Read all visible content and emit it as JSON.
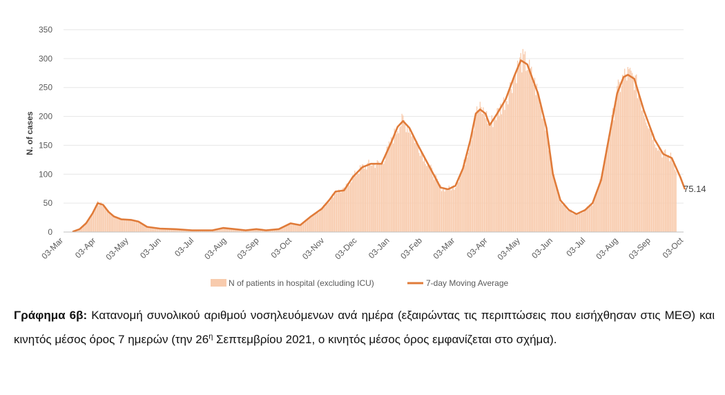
{
  "chart_data": {
    "type": "bar+line",
    "ylabel": "N. of cases",
    "ylim": [
      0,
      350
    ],
    "yticks": [
      0,
      50,
      100,
      150,
      200,
      250,
      300,
      350
    ],
    "x_ticks": [
      "03-Mar",
      "03-Apr",
      "03-May",
      "03-Jun",
      "03-Jul",
      "03-Aug",
      "03-Sep",
      "03-Oct",
      "03-Nov",
      "03-Dec",
      "03-Jan",
      "03-Feb",
      "03-Mar",
      "03-Apr",
      "03-May",
      "03-Jun",
      "03-Jul",
      "03-Aug",
      "03-Sep",
      "03-Oct"
    ],
    "x_start": "2020-03-03",
    "x_end": "2021-10-03",
    "series": [
      {
        "name": "N of patients in hospital (excluding ICU)",
        "type": "bar",
        "color": "#f8cbad"
      },
      {
        "name": "7-day Moving Average",
        "type": "line",
        "color": "#e07b39",
        "points": [
          [
            "2020-03-12",
            1
          ],
          [
            "2020-03-18",
            5
          ],
          [
            "2020-03-24",
            15
          ],
          [
            "2020-03-30",
            32
          ],
          [
            "2020-04-04",
            50
          ],
          [
            "2020-04-09",
            47
          ],
          [
            "2020-04-14",
            35
          ],
          [
            "2020-04-19",
            27
          ],
          [
            "2020-04-26",
            22
          ],
          [
            "2020-05-05",
            21
          ],
          [
            "2020-05-12",
            18
          ],
          [
            "2020-05-20",
            9
          ],
          [
            "2020-06-01",
            6
          ],
          [
            "2020-06-15",
            5
          ],
          [
            "2020-07-01",
            3
          ],
          [
            "2020-07-20",
            3
          ],
          [
            "2020-07-30",
            7
          ],
          [
            "2020-08-10",
            5
          ],
          [
            "2020-08-20",
            3
          ],
          [
            "2020-08-30",
            5
          ],
          [
            "2020-09-08",
            3
          ],
          [
            "2020-09-20",
            5
          ],
          [
            "2020-10-01",
            15
          ],
          [
            "2020-10-10",
            12
          ],
          [
            "2020-10-20",
            27
          ],
          [
            "2020-10-30",
            40
          ],
          [
            "2020-11-06",
            55
          ],
          [
            "2020-11-12",
            70
          ],
          [
            "2020-11-20",
            72
          ],
          [
            "2020-11-28",
            95
          ],
          [
            "2020-12-07",
            112
          ],
          [
            "2020-12-15",
            118
          ],
          [
            "2020-12-25",
            118
          ],
          [
            "2021-01-03",
            155
          ],
          [
            "2021-01-09",
            182
          ],
          [
            "2021-01-14",
            192
          ],
          [
            "2021-01-20",
            180
          ],
          [
            "2021-01-28",
            150
          ],
          [
            "2021-02-08",
            112
          ],
          [
            "2021-02-18",
            77
          ],
          [
            "2021-02-25",
            74
          ],
          [
            "2021-03-04",
            80
          ],
          [
            "2021-03-11",
            110
          ],
          [
            "2021-03-18",
            160
          ],
          [
            "2021-03-23",
            205
          ],
          [
            "2021-03-27",
            212
          ],
          [
            "2021-04-01",
            205
          ],
          [
            "2021-04-05",
            185
          ],
          [
            "2021-04-12",
            205
          ],
          [
            "2021-04-20",
            230
          ],
          [
            "2021-04-28",
            270
          ],
          [
            "2021-05-04",
            297
          ],
          [
            "2021-05-10",
            290
          ],
          [
            "2021-05-20",
            240
          ],
          [
            "2021-05-28",
            180
          ],
          [
            "2021-06-03",
            100
          ],
          [
            "2021-06-10",
            55
          ],
          [
            "2021-06-18",
            38
          ],
          [
            "2021-06-25",
            31
          ],
          [
            "2021-07-03",
            38
          ],
          [
            "2021-07-10",
            50
          ],
          [
            "2021-07-18",
            90
          ],
          [
            "2021-07-26",
            170
          ],
          [
            "2021-08-02",
            240
          ],
          [
            "2021-08-08",
            268
          ],
          [
            "2021-08-12",
            272
          ],
          [
            "2021-08-18",
            265
          ],
          [
            "2021-08-27",
            210
          ],
          [
            "2021-09-06",
            160
          ],
          [
            "2021-09-14",
            135
          ],
          [
            "2021-09-22",
            128
          ],
          [
            "2021-09-30",
            95
          ],
          [
            "2021-10-04",
            75
          ]
        ]
      }
    ],
    "end_label": "75.14",
    "legend_position": "bottom",
    "grid": true
  },
  "caption": {
    "label": "Γράφημα 6β:",
    "text_1": " Κατανομή συνολικού αριθμού νοσηλευόμενων ανά ημέρα (εξαιρώντας τις περιπτώσεις που εισήχθησαν στις ΜΕΘ) και κινητός μέσος όρος 7 ημερών (την 26",
    "superscript": "η",
    "text_2": " Σεπτεμβρίου 2021, ο κινητός μέσος όρος εμφανίζεται στο σχήμα)."
  }
}
